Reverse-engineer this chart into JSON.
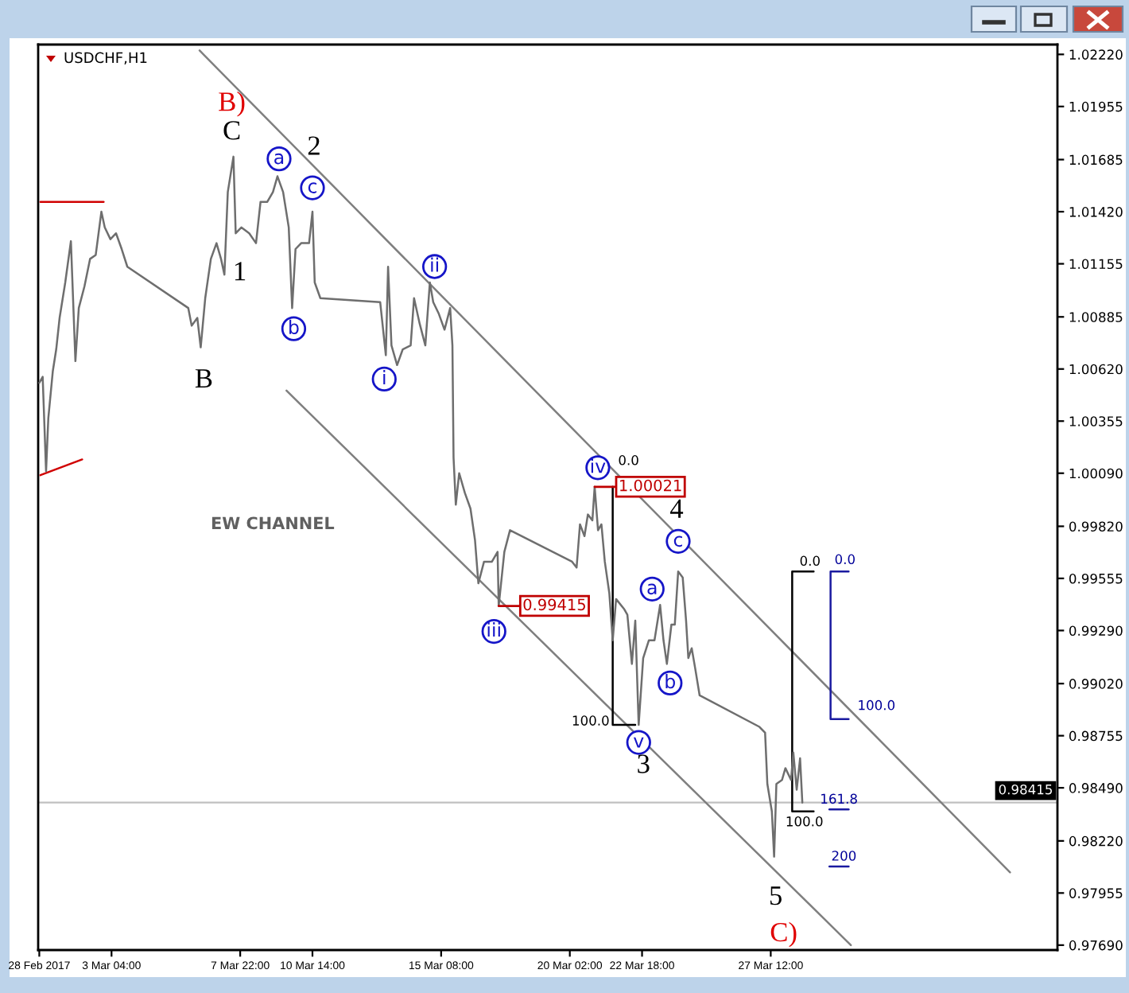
{
  "chart_data": {
    "type": "line",
    "title": "USDCHF,H1",
    "xlim": [
      "2017-02-28T11:00",
      "2017-04-07T02:00"
    ],
    "xticks": [
      {
        "value": "2017-02-28T12:00",
        "label": "28 Feb 2017"
      },
      {
        "value": "2017-03-03T04:00",
        "label": "3 Mar 04:00"
      },
      {
        "value": "2017-03-07T22:00",
        "label": "7 Mar 22:00"
      },
      {
        "value": "2017-03-10T14:00",
        "label": "10 Mar 14:00"
      },
      {
        "value": "2017-03-15T08:00",
        "label": "15 Mar 08:00"
      },
      {
        "value": "2017-03-20T02:00",
        "label": "20 Mar 02:00"
      },
      {
        "value": "2017-03-22T18:00",
        "label": "22 Mar 18:00"
      },
      {
        "value": "2017-03-27T12:00",
        "label": "27 Mar 12:00"
      }
    ],
    "ylim": [
      0.97665,
      1.0227
    ],
    "yticks": [
      {
        "value": 1.0222,
        "label": "1.02220"
      },
      1.01955,
      1.01685,
      {
        "value": 1.0142,
        "label": "1.01420"
      },
      1.01155,
      1.00885,
      {
        "value": 1.0062,
        "label": "1.00620"
      },
      1.00355,
      {
        "value": 1.0009,
        "label": "1.00090"
      },
      {
        "value": 0.9982,
        "label": "0.99820"
      },
      0.99555,
      {
        "value": 0.9929,
        "label": "0.99290"
      },
      {
        "value": 0.9902,
        "label": "0.99020"
      },
      0.98755,
      {
        "value": 0.9849,
        "label": "0.98490"
      },
      {
        "value": 0.9822,
        "label": "0.98220"
      },
      0.97955,
      {
        "value": 0.9769,
        "label": "0.97690"
      }
    ],
    "series": [
      {
        "color": "#7f7f7f",
        "x": [
          "2017-03-06T10:00",
          "2017-04-05T08:00"
        ],
        "values": [
          1.0224,
          0.9806
        ]
      },
      {
        "color": "#7f7f7f",
        "x": [
          "2017-03-09T15:00",
          "2017-03-30T11:00"
        ],
        "values": [
          1.0051,
          0.9769
        ]
      },
      {
        "color": "#d00000",
        "x": [
          "2017-02-28T13:00",
          "2017-03-02T21:00"
        ],
        "values": [
          1.0147,
          1.0147
        ]
      },
      {
        "color": "#d00000",
        "x": [
          "2017-02-28T13:00",
          "2017-03-02T02:00"
        ],
        "values": [
          1.0008,
          1.0016
        ]
      },
      {
        "color": "#000000",
        "x": [
          "2017-03-21T16:00",
          "2017-03-21T16:00",
          "2017-03-22T12:00"
        ],
        "values": [
          1.00021,
          0.9881,
          0.9881
        ]
      },
      {
        "color": "#000000",
        "x": [
          "2017-03-29T02:00",
          "2017-03-28T07:00",
          "2017-03-28T07:00",
          "2017-03-29T02:00"
        ],
        "values": [
          0.9959,
          0.9959,
          0.9837,
          0.9837
        ]
      },
      {
        "color": "#1a1aa0",
        "x": [
          "2017-03-30T09:00",
          "2017-03-29T17:00",
          "2017-03-29T17:00",
          "2017-03-30T09:00"
        ],
        "values": [
          0.9959,
          0.9959,
          0.9884,
          0.9884
        ]
      },
      {
        "color": "#1a1aa0",
        "x": [
          "2017-03-29T16:00",
          "2017-03-30T09:00"
        ],
        "values": [
          0.9838,
          0.9838
        ]
      },
      {
        "color": "#1a1aa0",
        "x": [
          "2017-03-29T16:00",
          "2017-03-30T09:00"
        ],
        "values": [
          0.9809,
          0.9809
        ]
      },
      {
        "color": "#6e6e6e",
        "x": [
          "2017-02-28T12:00",
          "2017-02-28T15:00",
          "2017-02-28T18:00",
          "2017-02-28T20:00",
          "2017-03-01T00:00",
          "2017-03-01T03:00",
          "2017-03-01T06:00",
          "2017-03-01T11:00",
          "2017-03-01T16:00",
          "2017-03-01T20:00",
          "2017-03-01T23:00",
          "2017-03-02T04:00",
          "2017-03-02T09:00",
          "2017-03-02T14:00",
          "2017-03-02T19:00",
          "2017-03-02T22:00",
          "2017-03-03T03:00",
          "2017-03-03T08:00",
          "2017-03-03T13:00",
          "2017-03-03T18:00",
          "2017-03-06T00:00",
          "2017-03-06T03:00",
          "2017-03-06T08:00",
          "2017-03-06T11:00",
          "2017-03-06T15:00",
          "2017-03-06T20:00",
          "2017-03-07T01:00",
          "2017-03-07T05:00",
          "2017-03-07T08:00",
          "2017-03-07T11:00",
          "2017-03-07T16:00",
          "2017-03-07T18:00",
          "2017-03-07T23:00",
          "2017-03-08T06:00",
          "2017-03-08T12:00",
          "2017-03-08T16:00",
          "2017-03-08T22:00",
          "2017-03-09T03:00",
          "2017-03-09T07:00",
          "2017-03-09T12:00",
          "2017-03-09T17:00",
          "2017-03-09T20:00",
          "2017-03-09T23:00",
          "2017-03-10T04:00",
          "2017-03-10T11:00",
          "2017-03-10T14:00",
          "2017-03-10T16:00",
          "2017-03-10T21:00",
          "2017-03-13T02:00",
          "2017-03-13T07:00",
          "2017-03-13T09:00",
          "2017-03-13T12:00",
          "2017-03-13T17:00",
          "2017-03-13T22:00",
          "2017-03-14T05:00",
          "2017-03-14T08:00",
          "2017-03-14T13:00",
          "2017-03-14T18:00",
          "2017-03-14T22:00",
          "2017-03-15T01:00",
          "2017-03-15T06:00",
          "2017-03-15T11:00",
          "2017-03-15T16:00",
          "2017-03-15T18:00",
          "2017-03-15T19:00",
          "2017-03-15T21:00",
          "2017-03-16T00:00",
          "2017-03-16T05:00",
          "2017-03-16T10:00",
          "2017-03-16T14:00",
          "2017-03-16T17:00",
          "2017-03-16T22:00",
          "2017-03-17T05:00",
          "2017-03-17T10:00",
          "2017-03-17T11:00",
          "2017-03-17T16:00",
          "2017-03-17T21:00",
          "2017-03-20T04:00",
          "2017-03-20T08:00",
          "2017-03-20T11:00",
          "2017-03-20T15:00",
          "2017-03-20T18:00",
          "2017-03-20T22:00",
          "2017-03-21T00:00",
          "2017-03-21T03:00",
          "2017-03-21T06:00",
          "2017-03-21T09:00",
          "2017-03-21T13:00",
          "2017-03-21T16:00",
          "2017-03-21T19:00",
          "2017-03-22T02:00",
          "2017-03-22T05:00",
          "2017-03-22T09:00",
          "2017-03-22T12:00",
          "2017-03-22T15:00",
          "2017-03-22T19:00",
          "2017-03-23T00:00",
          "2017-03-23T05:00",
          "2017-03-23T10:00",
          "2017-03-23T13:00",
          "2017-03-23T16:00",
          "2017-03-23T20:00",
          "2017-03-23T23:00",
          "2017-03-24T02:00",
          "2017-03-24T06:00",
          "2017-03-24T09:00",
          "2017-03-24T11:00",
          "2017-03-24T14:00",
          "2017-03-24T17:00",
          "2017-03-24T21:00",
          "2017-03-27T02:00",
          "2017-03-27T07:00",
          "2017-03-27T09:00",
          "2017-03-27T13:00",
          "2017-03-27T15:00",
          "2017-03-27T17:00",
          "2017-03-27T22:00",
          "2017-03-28T01:00",
          "2017-03-28T06:00",
          "2017-03-28T08:00",
          "2017-03-28T11:00",
          "2017-03-28T14:00",
          "2017-03-28T16:00"
        ],
        "values": [
          1.0055,
          1.0058,
          1.001,
          1.0037,
          1.0061,
          1.0072,
          1.0088,
          1.0106,
          1.0127,
          1.0066,
          1.0093,
          1.0104,
          1.0118,
          1.012,
          1.0142,
          1.0134,
          1.0128,
          1.0131,
          1.0123,
          1.0114,
          1.0093,
          1.0084,
          1.0088,
          1.0073,
          1.0098,
          1.0118,
          1.0126,
          1.0118,
          1.011,
          1.0152,
          1.017,
          1.0131,
          1.0134,
          1.0131,
          1.0126,
          1.0147,
          1.0147,
          1.0152,
          1.016,
          1.0152,
          1.0134,
          1.0093,
          1.0123,
          1.0126,
          1.0126,
          1.0142,
          1.0106,
          1.0098,
          1.0096,
          1.0069,
          1.0114,
          1.0074,
          1.0064,
          1.0072,
          1.0074,
          1.0098,
          1.0085,
          1.0074,
          1.0106,
          1.0096,
          1.009,
          1.0082,
          1.0093,
          1.0074,
          1.0017,
          0.9993,
          1.0009,
          0.9999,
          0.9991,
          0.9975,
          0.9953,
          0.9964,
          0.9964,
          0.9969,
          0.99415,
          0.9969,
          0.998,
          0.9964,
          0.9961,
          0.9983,
          0.9977,
          0.9988,
          0.9985,
          1.00021,
          0.998,
          0.9983,
          0.9964,
          0.9948,
          0.9924,
          0.9945,
          0.994,
          0.9937,
          0.9912,
          0.9934,
          0.9881,
          0.9915,
          0.9924,
          0.9924,
          0.9942,
          0.9924,
          0.9912,
          0.9932,
          0.9932,
          0.9959,
          0.9956,
          0.9934,
          0.9915,
          0.992,
          0.991,
          0.9896,
          0.988,
          0.9877,
          0.9851,
          0.9837,
          0.9814,
          0.9851,
          0.9853,
          0.9859,
          0.9853,
          0.9867,
          0.9848,
          0.9864,
          0.98415
        ]
      }
    ],
    "ref_lines": [
      {
        "axis": "y",
        "value": 0.98415,
        "label": "0.98415",
        "color": "#c0c0c0"
      }
    ],
    "annotations": [
      {
        "text": "B)",
        "x": "2017-03-07T16:00",
        "y": 1.017
      },
      {
        "text": "C",
        "x": "2017-03-07T16:00",
        "y": 1.017
      },
      {
        "text": "1",
        "x": "2017-03-07T23:00",
        "y": 1.0134
      },
      {
        "text": "B",
        "x": "2017-03-06T11:00",
        "y": 1.0073
      },
      {
        "text": "2",
        "x": "2017-03-10T14:00",
        "y": 1.0142
      },
      {
        "text": "a",
        "x": "2017-03-09T07:00",
        "y": 1.016
      },
      {
        "text": "b",
        "x": "2017-03-09T20:00",
        "y": 1.0093
      },
      {
        "text": "c",
        "x": "2017-03-10T14:00",
        "y": 1.0142
      },
      {
        "text": "i",
        "x": "2017-03-13T07:00",
        "y": 1.0069
      },
      {
        "text": "ii",
        "x": "2017-03-14T22:00",
        "y": 1.0106
      },
      {
        "text": "iii",
        "x": "2017-03-17T11:00",
        "y": 0.99415
      },
      {
        "text": "iv",
        "x": "2017-03-21T00:00",
        "y": 1.00021
      },
      {
        "text": "v",
        "x": "2017-03-22T15:00",
        "y": 0.9881
      },
      {
        "text": "3",
        "x": "2017-03-22T15:00",
        "y": 0.9881
      },
      {
        "text": "4",
        "x": "2017-03-24T02:00",
        "y": 0.9959
      },
      {
        "text": "c",
        "x": "2017-03-24T02:00",
        "y": 0.9959
      },
      {
        "text": "a",
        "x": "2017-03-23T10:00",
        "y": 0.9942
      },
      {
        "text": "b",
        "x": "2017-03-23T16:00",
        "y": 0.9912
      },
      {
        "text": "5",
        "x": "2017-03-27T15:00",
        "y": 0.9814
      },
      {
        "text": "C)",
        "x": "2017-03-27T15:00",
        "y": 0.9814
      },
      "EW CHANNEL",
      {
        "text": "1.00021",
        "x": "2017-03-21T00:00",
        "y": 1.00021
      },
      {
        "text": "0.99415",
        "x": "2017-03-17T11:00",
        "y": 0.99415
      },
      {
        "text": "0.0",
        "x": "2017-03-21T16:00",
        "y": 1.00021
      },
      {
        "text": "100.0",
        "x": "2017-03-22T02:00",
        "y": 0.9881
      },
      {
        "text": "0.0",
        "x": "2017-03-28T20:00",
        "y": 0.9959
      },
      {
        "text": "100.0",
        "x": "2017-03-28T15:00",
        "y": 0.9837
      },
      {
        "text": "0.0",
        "x": "2017-03-30T03:00",
        "y": 0.9959
      },
      {
        "text": "100.0",
        "x": "2017-03-29T21:00",
        "y": 0.9884
      },
      {
        "text": "161.8",
        "x": "2017-03-29T23:00",
        "y": 0.9838
      },
      {
        "text": "200",
        "x": "2017-03-30T02:00",
        "y": 0.9809
      }
    ]
  }
}
